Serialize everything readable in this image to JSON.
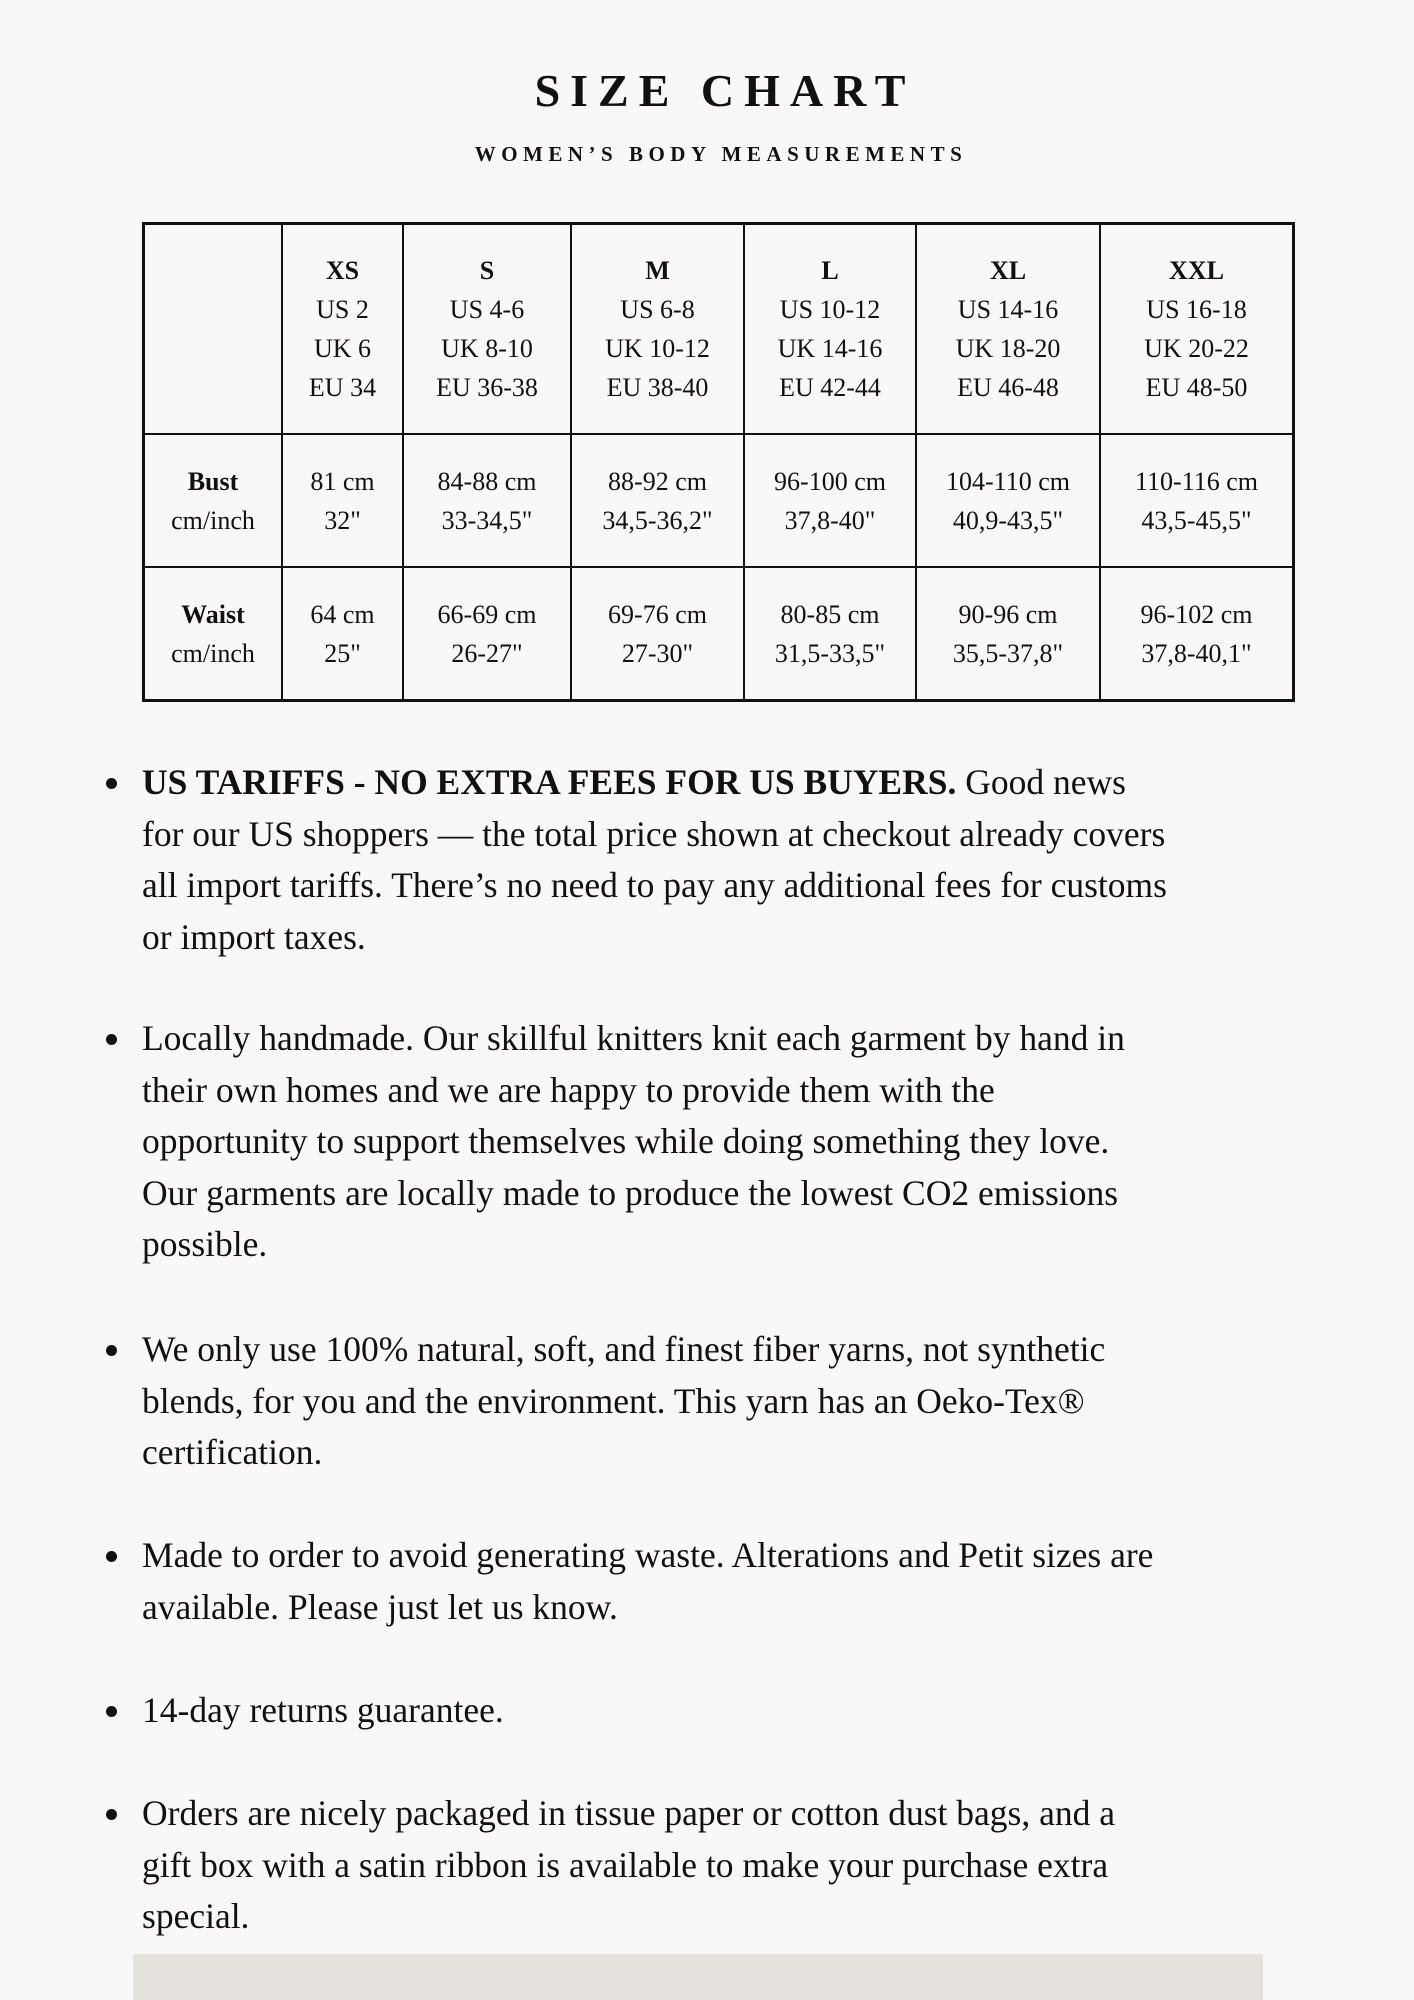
{
  "header": {
    "title": "SIZE CHART",
    "subtitle": "WOMEN’S BODY MEASUREMENTS"
  },
  "table": {
    "columns": [
      {
        "size": "XS",
        "us": "US 2",
        "uk": "UK 6",
        "eu": "EU 34"
      },
      {
        "size": "S",
        "us": "US 4-6",
        "uk": "UK 8-10",
        "eu": "EU 36-38"
      },
      {
        "size": "M",
        "us": "US 6-8",
        "uk": "UK 10-12",
        "eu": "EU 38-40"
      },
      {
        "size": "L",
        "us": "US 10-12",
        "uk": "UK 14-16",
        "eu": "EU 42-44"
      },
      {
        "size": "XL",
        "us": "US 14-16",
        "uk": "UK 18-20",
        "eu": "EU 46-48"
      },
      {
        "size": "XXL",
        "us": "US 16-18",
        "uk": "UK 20-22",
        "eu": "EU 48-50"
      }
    ],
    "rows": [
      {
        "label": "Bust",
        "unit": "cm/inch",
        "cells": [
          [
            "81 cm",
            "32\""
          ],
          [
            "84-88 cm",
            "33-34,5\""
          ],
          [
            "88-92 cm",
            "34,5-36,2\""
          ],
          [
            "96-100 cm",
            "37,8-40\""
          ],
          [
            "104-110 cm",
            "40,9-43,5\""
          ],
          [
            "110-116 cm",
            "43,5-45,5\""
          ]
        ]
      },
      {
        "label": "Waist",
        "unit": "cm/inch",
        "cells": [
          [
            "64 cm",
            "25\""
          ],
          [
            "66-69 cm",
            "26-27\""
          ],
          [
            "69-76 cm",
            "27-30\""
          ],
          [
            "80-85 cm",
            "31,5-33,5\""
          ],
          [
            "90-96 cm",
            "35,5-37,8\""
          ],
          [
            "96-102 cm",
            "37,8-40,1\""
          ]
        ]
      }
    ]
  },
  "bullets": [
    {
      "bold": "US TARIFFS - NO EXTRA FEES FOR US BUYERS.",
      "lines": [
        " Good news",
        "for our US shoppers — the total price shown at checkout already covers",
        "all import tariffs. There’s no need to pay any additional fees for customs",
        "or import taxes."
      ]
    },
    {
      "bold": "",
      "lines": [
        "Locally handmade. Our skillful knitters knit each garment by hand in",
        "their own homes and we are happy to provide them with the",
        "opportunity to support themselves while doing something they love.",
        "Our garments are locally made to produce the lowest CO2 emissions",
        "possible."
      ]
    },
    {
      "bold": "",
      "lines": [
        "We only use 100% natural, soft, and finest fiber yarns, not synthetic",
        "blends, for you and the environment. This yarn has an Oeko-Tex®",
        "certification."
      ]
    },
    {
      "bold": "",
      "lines": [
        "Made to order to avoid generating waste. Alterations and Petit sizes are",
        "available. Please just let us know."
      ]
    },
    {
      "bold": "",
      "lines": [
        "14-day returns guarantee."
      ]
    },
    {
      "bold": "",
      "lines": [
        "Orders are nicely packaged in tissue paper or cotton dust bags, and a",
        "gift box with a satin ribbon is available to make your purchase extra",
        "special."
      ]
    }
  ],
  "colors": {
    "background": "#f9f8f6",
    "text": "#111111",
    "footer_band": "#e5e2dd"
  }
}
